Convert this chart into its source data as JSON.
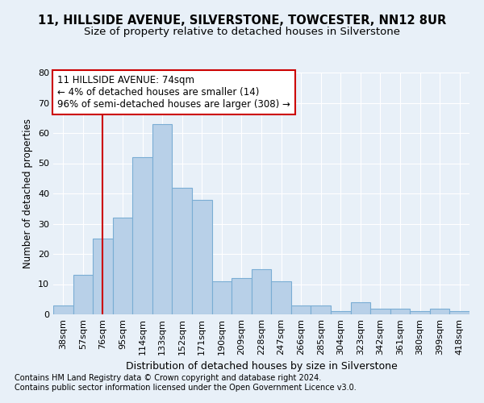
{
  "title1": "11, HILLSIDE AVENUE, SILVERSTONE, TOWCESTER, NN12 8UR",
  "title2": "Size of property relative to detached houses in Silverstone",
  "xlabel": "Distribution of detached houses by size in Silverstone",
  "ylabel": "Number of detached properties",
  "categories": [
    "38sqm",
    "57sqm",
    "76sqm",
    "95sqm",
    "114sqm",
    "133sqm",
    "152sqm",
    "171sqm",
    "190sqm",
    "209sqm",
    "228sqm",
    "247sqm",
    "266sqm",
    "285sqm",
    "304sqm",
    "323sqm",
    "342sqm",
    "361sqm",
    "380sqm",
    "399sqm",
    "418sqm"
  ],
  "values": [
    3,
    13,
    25,
    32,
    52,
    63,
    42,
    38,
    11,
    12,
    15,
    11,
    3,
    3,
    1,
    4,
    2,
    2,
    1,
    2,
    1
  ],
  "bar_color": "#b8d0e8",
  "bar_edge_color": "#7aadd4",
  "annotation_text_line1": "11 HILLSIDE AVENUE: 74sqm",
  "annotation_text_line2": "← 4% of detached houses are smaller (14)",
  "annotation_text_line3": "96% of semi-detached houses are larger (308) →",
  "vline_color": "#cc0000",
  "annotation_box_color": "#cc0000",
  "ylim": [
    0,
    80
  ],
  "yticks": [
    0,
    10,
    20,
    30,
    40,
    50,
    60,
    70,
    80
  ],
  "footnote1": "Contains HM Land Registry data © Crown copyright and database right 2024.",
  "footnote2": "Contains public sector information licensed under the Open Government Licence v3.0.",
  "background_color": "#e8f0f8",
  "plot_bg_color": "#e8f0f8",
  "grid_color": "#ffffff",
  "title1_fontsize": 10.5,
  "title2_fontsize": 9.5,
  "xlabel_fontsize": 9,
  "ylabel_fontsize": 8.5,
  "tick_fontsize": 8,
  "annotation_fontsize": 8.5,
  "footnote_fontsize": 7
}
